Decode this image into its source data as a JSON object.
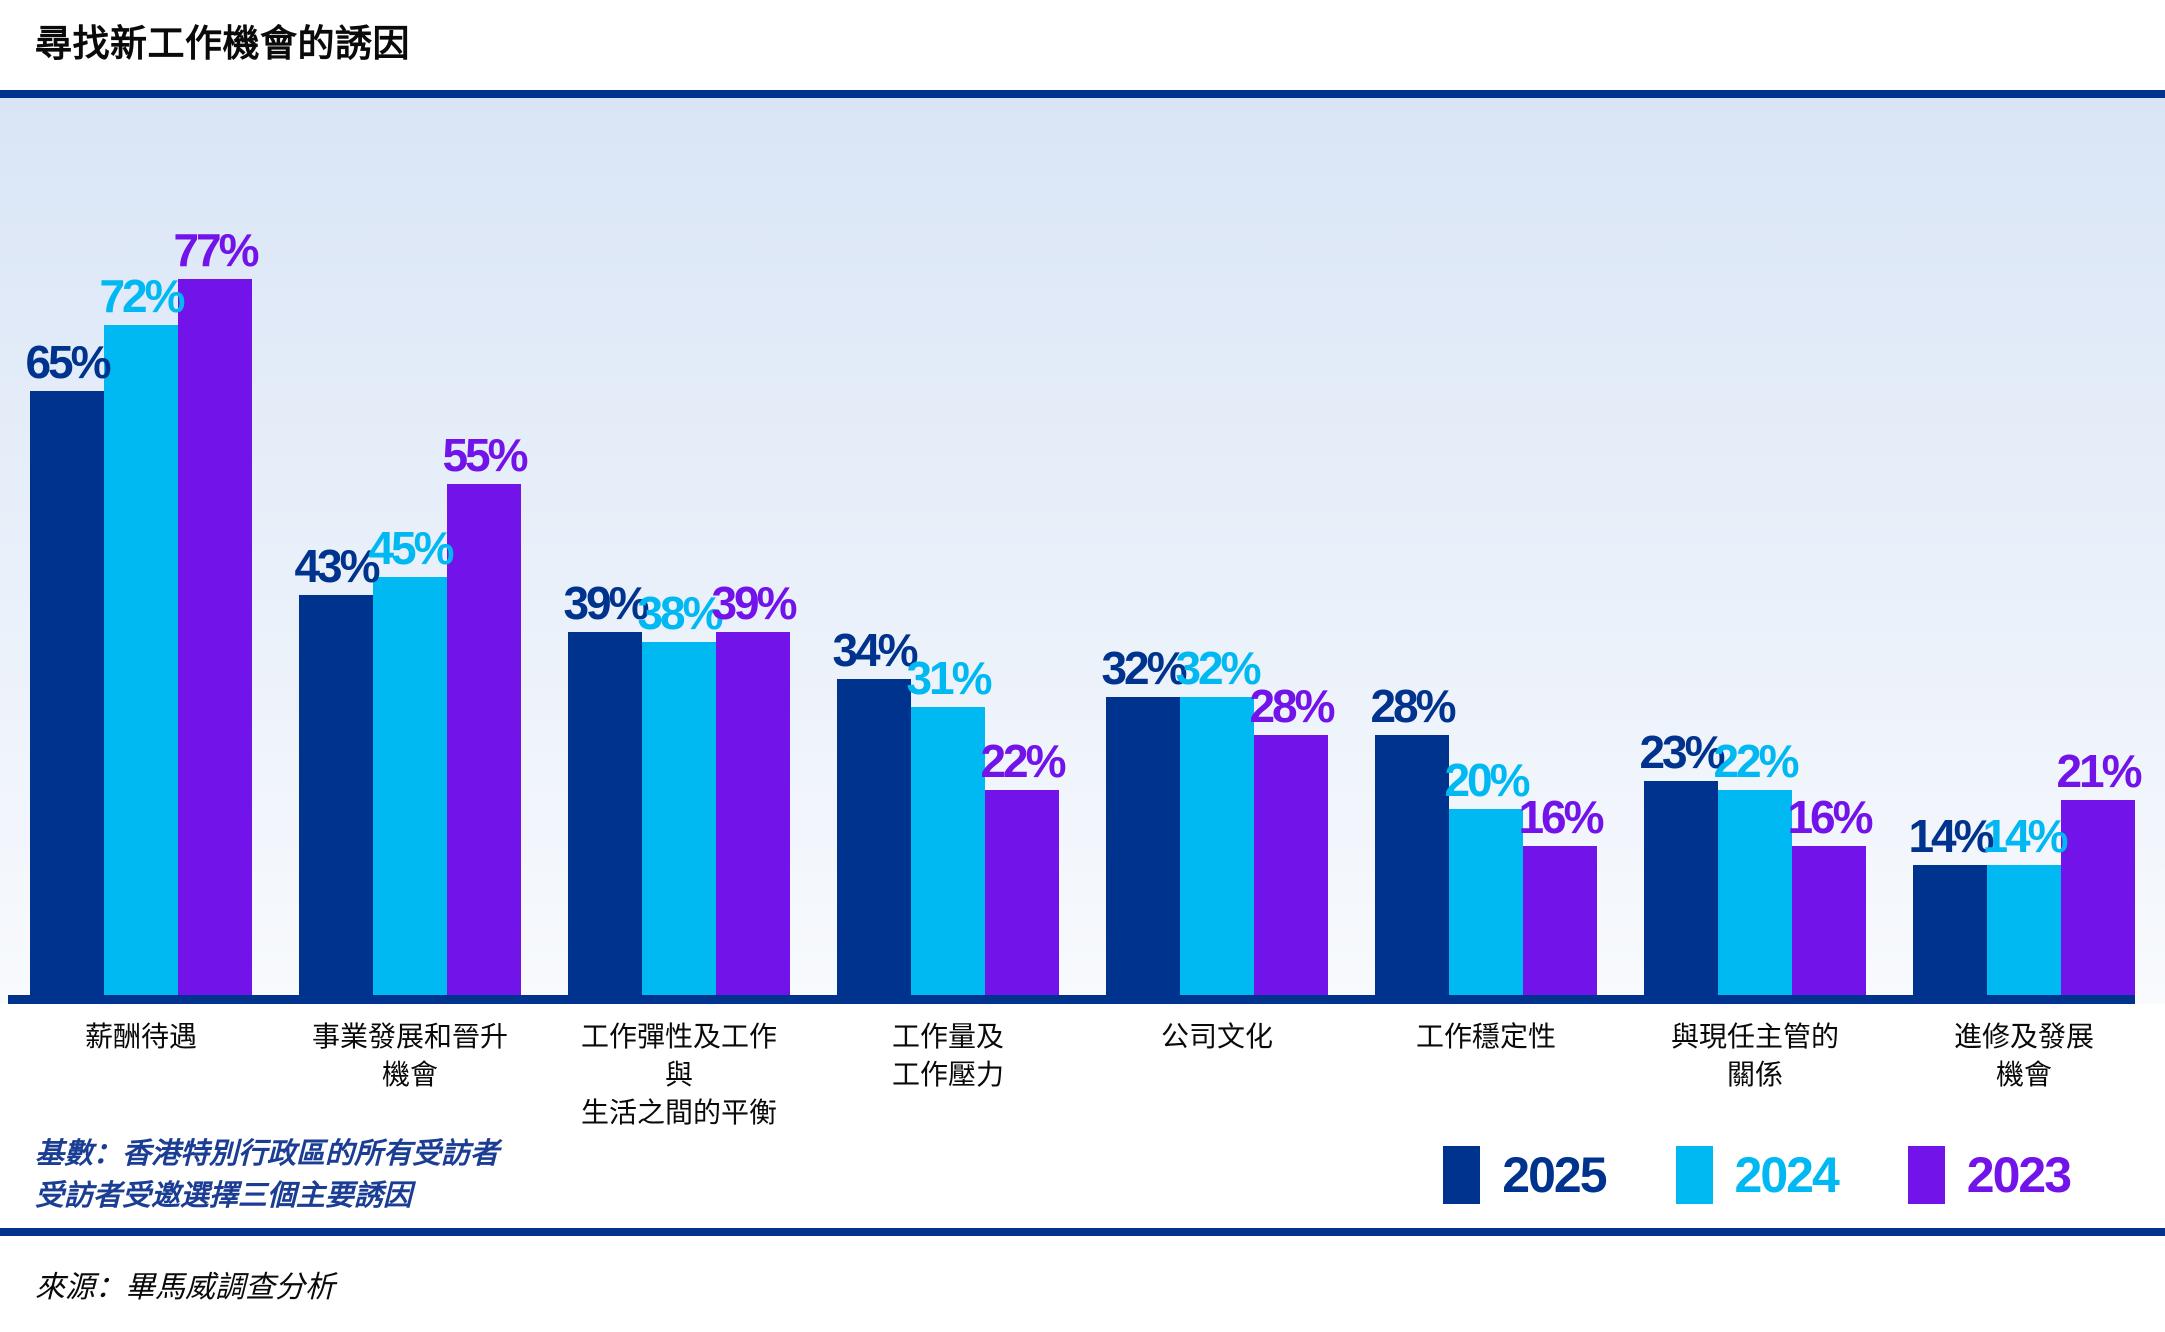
{
  "title": "尋找新工作機會的誘因",
  "colors": {
    "navy": "#00338D",
    "cyan": "#00B8F2",
    "purple": "#7213EA",
    "axis_line": "#00338D",
    "divider": "#00338D",
    "footnote_text": "#1B3E94",
    "plot_bg_top": "#D9E5F6",
    "plot_bg_bottom": "#F8FAFD"
  },
  "chart_data": {
    "type": "bar",
    "title": "尋找新工作機會的誘因",
    "categories": [
      "薪酬待遇",
      "事業發展和晉升\n機會",
      "工作彈性及工作與\n生活之間的平衡",
      "工作量及\n工作壓力",
      "公司文化",
      "工作穩定性",
      "與現任主管的\n關係",
      "進修及發展\n機會"
    ],
    "series": [
      {
        "name": "2025",
        "color": "#00338D",
        "values": [
          65,
          43,
          39,
          34,
          32,
          28,
          23,
          14
        ]
      },
      {
        "name": "2024",
        "color": "#00B8F2",
        "values": [
          72,
          45,
          38,
          31,
          32,
          20,
          22,
          14
        ]
      },
      {
        "name": "2023",
        "color": "#7213EA",
        "values": [
          77,
          55,
          39,
          22,
          28,
          16,
          16,
          21
        ]
      }
    ],
    "value_suffix": "%",
    "ylim": [
      0,
      100
    ],
    "grid": false,
    "legend_position": "bottom-right"
  },
  "legend": {
    "items": [
      {
        "label": "2025",
        "color": "#00338D"
      },
      {
        "label": "2024",
        "color": "#00B8F2"
      },
      {
        "label": "2023",
        "color": "#7213EA"
      }
    ]
  },
  "footnote": {
    "line1": "基數：香港特別行政區的所有受訪者",
    "line2": "受訪者受邀選擇三個主要誘因"
  },
  "source": "來源：畢馬威調查分析"
}
